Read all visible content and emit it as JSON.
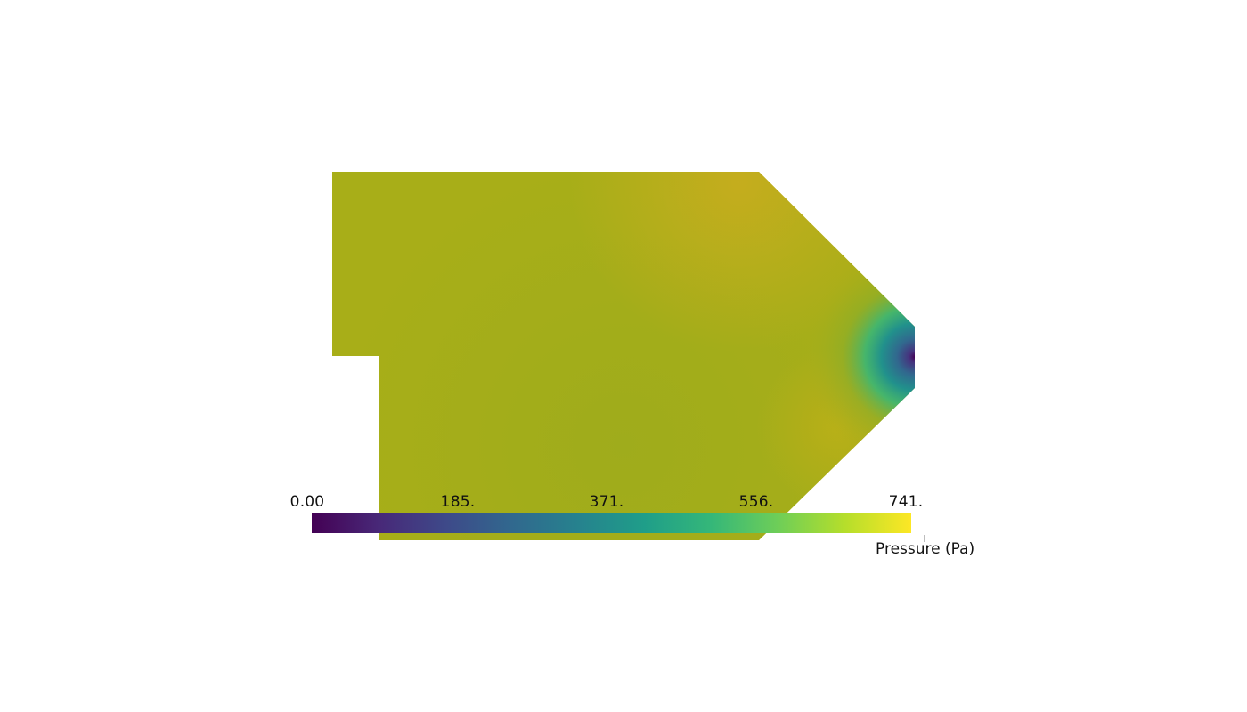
{
  "colorbar": {
    "title": "Pressure (Pa)",
    "min": 0,
    "max": 741,
    "colormap": "viridis",
    "colormap_stops": [
      "#440154",
      "#482878",
      "#3e4989",
      "#31688e",
      "#26828e",
      "#1f9e89",
      "#35b779",
      "#6ece58",
      "#b5de2b",
      "#fde725"
    ],
    "ticks": [
      {
        "value": 0,
        "label": "0.00"
      },
      {
        "value": 185,
        "label": "185."
      },
      {
        "value": 371,
        "label": "371."
      },
      {
        "value": 556,
        "label": "556."
      },
      {
        "value": 741,
        "label": "741."
      }
    ]
  },
  "field_colors": {
    "bulk": "#a8ae18",
    "upper_hotspot": "#c4ae1c",
    "lower_band": "#9dac1c",
    "outlet_mid": "#21918c",
    "outlet_low": "#3b528b",
    "outlet_edge": "#440154"
  }
}
